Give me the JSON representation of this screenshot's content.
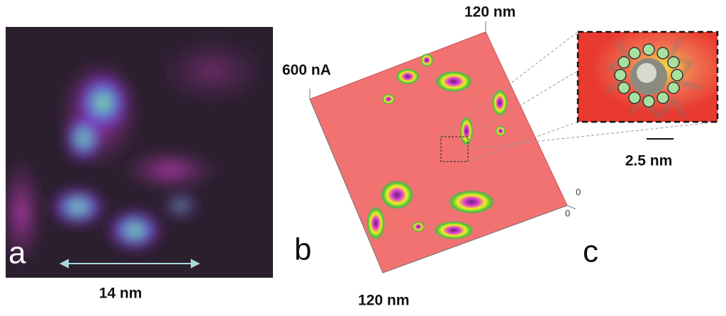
{
  "panels": [
    {
      "label": "a",
      "scale_label": "14 nm"
    },
    {
      "label": "b",
      "z_label": "600 nA",
      "top_label": "120 nm",
      "bottom_label": "120 nm",
      "axis_zero_1": "0",
      "axis_zero_2": "0"
    },
    {
      "label": "c",
      "scale_label": "2.5 nm"
    }
  ]
}
